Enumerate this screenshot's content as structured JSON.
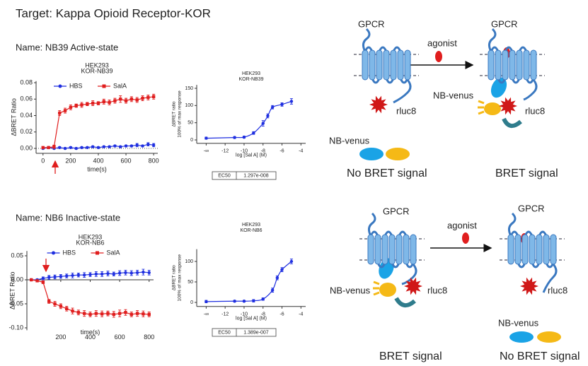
{
  "header": {
    "title": "Target: Kappa Opioid Receptor-KOR",
    "names": [
      "Name: NB39  Active-state",
      "Name: NB6  Inactive-state"
    ]
  },
  "chart_data": [
    {
      "type": "line",
      "title": "HEK293",
      "subtitle": "KOR-NB39",
      "xlabel": "time(s)",
      "ylabel": "ΔBRET Ratio",
      "x": [
        0,
        40,
        80,
        120,
        160,
        200,
        240,
        280,
        320,
        360,
        400,
        440,
        480,
        520,
        560,
        600,
        640,
        680,
        720,
        760,
        800
      ],
      "xlim": [
        -50,
        830
      ],
      "xticks": [
        0,
        200,
        400,
        600,
        800
      ],
      "ylim": [
        -0.006,
        0.082
      ],
      "yticks": [
        {
          "value": 0,
          "label": "0.00"
        },
        {
          "value": 0.02,
          "label": "0.02"
        },
        {
          "value": 0.04,
          "label": "0.04"
        },
        {
          "value": 0.06,
          "label": "0.06"
        },
        {
          "value": 0.08,
          "label": "0.08"
        }
      ],
      "series": [
        {
          "name": "HBS",
          "color": "#1f2fe0",
          "marker": "circle",
          "values": [
            0,
            0.001,
            0,
            0.001,
            0,
            0.001,
            0,
            0.001,
            0.001,
            0.002,
            0.001,
            0.002,
            0.002,
            0.003,
            0.002,
            0.003,
            0.003,
            0.004,
            0.003,
            0.005,
            0.004
          ],
          "errors": [
            0.001,
            0.001,
            0.001,
            0.001,
            0.001,
            0.001,
            0.001,
            0.001,
            0.001,
            0.001,
            0.001,
            0.001,
            0.001,
            0.001,
            0.001,
            0.001,
            0.001,
            0.002,
            0.001,
            0.002,
            0.002
          ]
        },
        {
          "name": "SalA",
          "color": "#e01e1e",
          "marker": "square",
          "values": [
            0.001,
            0.001,
            0.002,
            0.043,
            0.046,
            0.05,
            0.052,
            0.053,
            0.054,
            0.055,
            0.055,
            0.057,
            0.056,
            0.058,
            0.06,
            0.058,
            0.06,
            0.059,
            0.061,
            0.062,
            0.063
          ],
          "errors": [
            0.001,
            0.001,
            0.002,
            0.003,
            0.003,
            0.003,
            0.002,
            0.003,
            0.002,
            0.003,
            0.002,
            0.003,
            0.003,
            0.003,
            0.004,
            0.003,
            0.003,
            0.003,
            0.003,
            0.003,
            0.003
          ]
        }
      ]
    },
    {
      "type": "line",
      "title": "HEK293",
      "subtitle": "KOR-NB39",
      "xlabel": "log [Sal A] (M)",
      "ylabel": [
        "ΔBRET ratio",
        "100% of max response"
      ],
      "x": [
        -14,
        -11,
        -10,
        -9,
        -8,
        -7.5,
        -7,
        -6,
        -5
      ],
      "xlim": [
        -15,
        -3.5
      ],
      "xticks": [
        {
          "value": -14,
          "label": "-∞"
        },
        -12,
        -10,
        -8,
        -6,
        -4
      ],
      "ylim": [
        -10,
        160
      ],
      "yticks": [
        0,
        50,
        100,
        150
      ],
      "series": [
        {
          "color": "#1f2fe0",
          "marker": "circle",
          "fit": true,
          "values": [
            5,
            7,
            8,
            20,
            48,
            70,
            95,
            103,
            112
          ],
          "errors": [
            3,
            3,
            3,
            4,
            8,
            6,
            5,
            5,
            8
          ]
        }
      ],
      "annotation": {
        "label": "EC50",
        "value": "1.297e-008"
      }
    },
    {
      "type": "line",
      "title": "HEK293",
      "subtitle": "KOR-NB6",
      "xlabel": "time(s)",
      "ylabel": "ΔBRET Ratio",
      "x": [
        0,
        40,
        80,
        120,
        160,
        200,
        240,
        280,
        320,
        360,
        400,
        440,
        480,
        520,
        560,
        600,
        640,
        680,
        720,
        760,
        800
      ],
      "xlim": [
        -30,
        830
      ],
      "xticks": [
        200,
        400,
        600,
        800
      ],
      "xaxis_position": "zero",
      "ylim": [
        -0.105,
        0.06
      ],
      "yticks": [
        {
          "value": 0.05,
          "label": "0.05"
        },
        {
          "value": 0,
          "label": "0.00"
        },
        {
          "value": -0.05,
          "label": "-0.05"
        },
        {
          "value": -0.1,
          "label": "-0.10"
        }
      ],
      "series": [
        {
          "name": "HBS",
          "color": "#1f2fe0",
          "marker": "circle",
          "values": [
            0,
            0,
            0.003,
            0.005,
            0.006,
            0.007,
            0.008,
            0.009,
            0.01,
            0.01,
            0.011,
            0.012,
            0.012,
            0.013,
            0.012,
            0.014,
            0.015,
            0.014,
            0.015,
            0.016,
            0.015
          ],
          "errors": [
            0.002,
            0.002,
            0.003,
            0.004,
            0.004,
            0.004,
            0.004,
            0.005,
            0.004,
            0.005,
            0.004,
            0.005,
            0.005,
            0.005,
            0.004,
            0.005,
            0.005,
            0.005,
            0.005,
            0.006,
            0.005
          ]
        },
        {
          "name": "SalA",
          "color": "#e01e1e",
          "marker": "square",
          "values": [
            0,
            -0.002,
            -0.005,
            -0.045,
            -0.05,
            -0.055,
            -0.06,
            -0.065,
            -0.068,
            -0.07,
            -0.072,
            -0.07,
            -0.071,
            -0.07,
            -0.072,
            -0.07,
            -0.068,
            -0.072,
            -0.07,
            -0.071,
            -0.072
          ],
          "errors": [
            0.002,
            0.002,
            0.003,
            0.004,
            0.005,
            0.005,
            0.005,
            0.006,
            0.005,
            0.006,
            0.005,
            0.006,
            0.006,
            0.005,
            0.006,
            0.007,
            0.006,
            0.005,
            0.006,
            0.006,
            0.005
          ]
        }
      ]
    },
    {
      "type": "line",
      "title": "HEK293",
      "subtitle": "KOR-NB6",
      "xlabel": "log [Sal A] (M)",
      "ylabel": [
        "ΔBRET ratio",
        "100% of max response"
      ],
      "x": [
        -14,
        -11,
        -10,
        -9,
        -8,
        -7,
        -6.5,
        -6,
        -5
      ],
      "xlim": [
        -15,
        -3.5
      ],
      "xticks": [
        {
          "value": -14,
          "label": "-∞"
        },
        -12,
        -10,
        -8,
        -6,
        -4
      ],
      "ylim": [
        -10,
        130
      ],
      "yticks": [
        0,
        50,
        100
      ],
      "series": [
        {
          "color": "#1f2fe0",
          "marker": "circle",
          "fit": true,
          "values": [
            2,
            3,
            3,
            4,
            8,
            30,
            60,
            80,
            100
          ],
          "errors": [
            3,
            2,
            2,
            3,
            3,
            5,
            5,
            5,
            6
          ]
        }
      ],
      "annotation": {
        "label": "EC50",
        "value": "1.389e-007"
      }
    }
  ],
  "diagrams": [
    {
      "labels": [
        "GPCR",
        "agonist",
        "GPCR",
        "NB-venus",
        "rluc8",
        "rluc8",
        "NB-venus"
      ],
      "captions": [
        "No BRET signal",
        "BRET signal"
      ]
    },
    {
      "labels": [
        "GPCR",
        "agonist",
        "GPCR",
        "NB-venus",
        "rluc8",
        "rluc8",
        "NB-venus"
      ],
      "captions": [
        "BRET signal",
        "No BRET signal"
      ]
    }
  ]
}
